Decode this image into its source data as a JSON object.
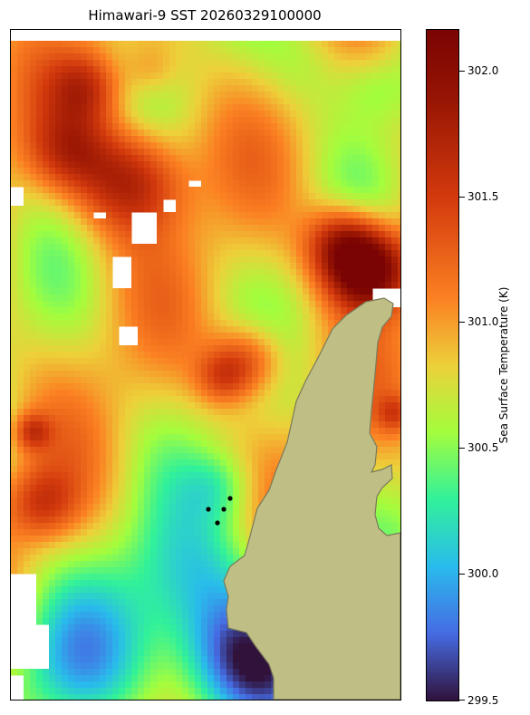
{
  "title": "Himawari-9 SST 20260329100000",
  "colorbar": {
    "label": "Sea Surface Temperature (K)",
    "min": 299.5,
    "max": 302.17,
    "ticks": [
      {
        "value": 299.5,
        "label": "299.5"
      },
      {
        "value": 300.0,
        "label": "300.0"
      },
      {
        "value": 300.5,
        "label": "300.5"
      },
      {
        "value": 301.0,
        "label": "301.0"
      },
      {
        "value": 301.5,
        "label": "301.5"
      },
      {
        "value": 302.0,
        "label": "302.0"
      }
    ],
    "colormap": "turbo"
  },
  "colors": {
    "land": "#bfbf85",
    "coastline": "#7a7a5a",
    "missing": "#ffffff",
    "station_markers": "#000000"
  },
  "icons": {
    "station_markers": "dot"
  }
}
